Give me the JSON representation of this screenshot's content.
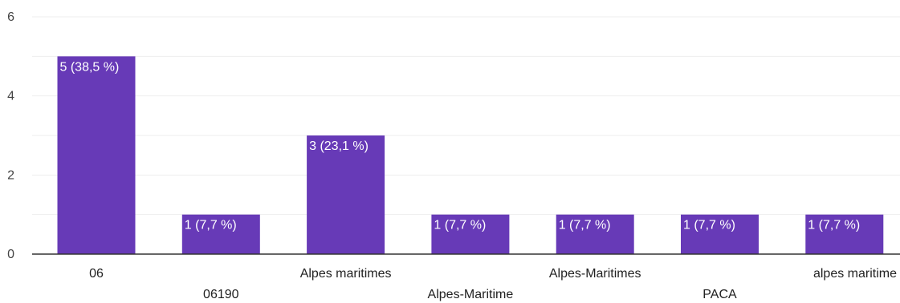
{
  "chart_data": {
    "type": "bar",
    "categories": [
      "06",
      "06190",
      "Alpes maritimes",
      "Alpes-Maritime",
      "Alpes-Maritimes",
      "PACA",
      "alpes maritime"
    ],
    "values": [
      5,
      1,
      3,
      1,
      1,
      1,
      1
    ],
    "data_labels": [
      "5 (38,5 %)",
      "1 (7,7 %)",
      "3 (23,1 %)",
      "1 (7,7 %)",
      "1 (7,7 %)",
      "1 (7,7 %)",
      "1 (7,7 %)"
    ],
    "yticks": [
      0,
      2,
      4,
      6
    ],
    "ylim": [
      0,
      6
    ],
    "grid": true,
    "bar_color": "#673ab7",
    "grid_color": "#eeeeee",
    "axis_color": "#333333"
  }
}
